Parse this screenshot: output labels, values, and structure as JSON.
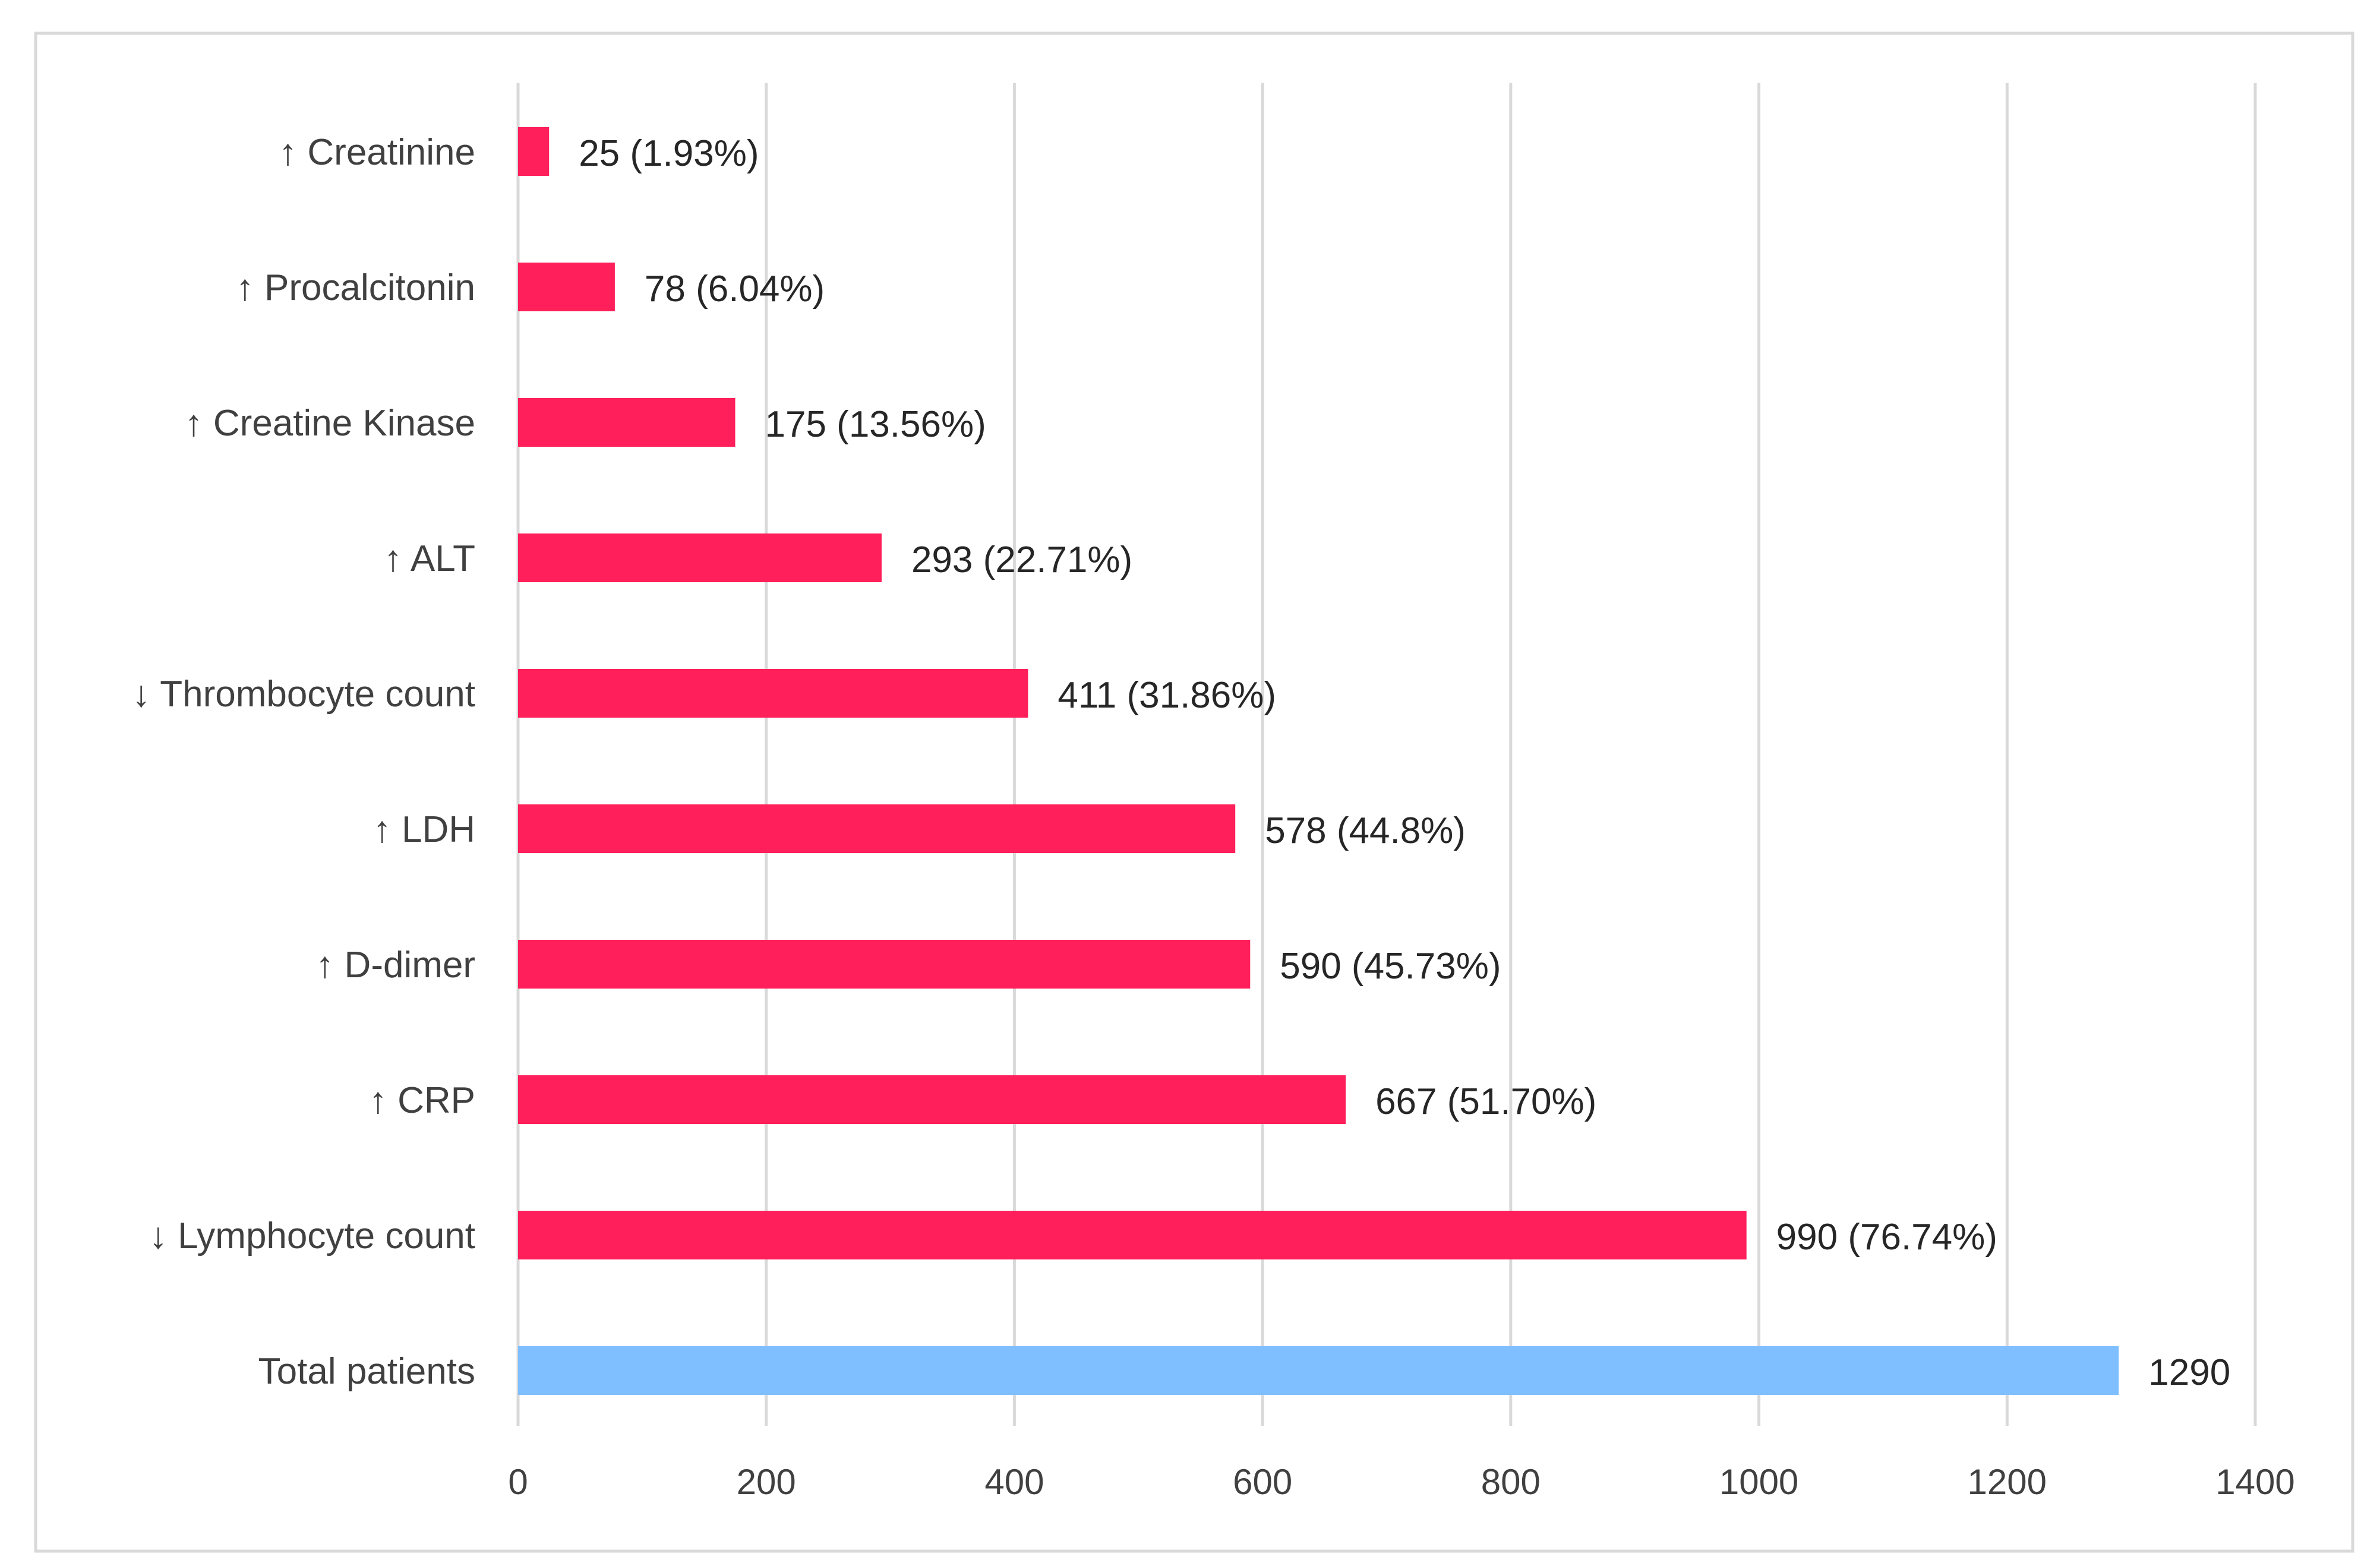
{
  "chart_data": {
    "type": "bar",
    "orientation": "horizontal",
    "title": "",
    "xlabel": "",
    "ylabel": "",
    "xlim": [
      0,
      1400
    ],
    "x_ticks": [
      "0",
      "200",
      "400",
      "600",
      "800",
      "1000",
      "1200",
      "1400"
    ],
    "grid": "vertical",
    "colors": {
      "abnormal": "#ff1f5a",
      "total": "#7fbfff",
      "grid": "#d9d9d9",
      "border": "#d9d9d9"
    },
    "bars": [
      {
        "category": "↑ Creatinine",
        "value": 25,
        "label": "25 (1.93%)",
        "kind": "abnormal"
      },
      {
        "category": "↑ Procalcitonin",
        "value": 78,
        "label": "78 (6.04%)",
        "kind": "abnormal"
      },
      {
        "category": "↑ Creatine Kinase",
        "value": 175,
        "label": "175 (13.56%)",
        "kind": "abnormal"
      },
      {
        "category": "↑ ALT",
        "value": 293,
        "label": "293 (22.71%)",
        "kind": "abnormal"
      },
      {
        "category": "↓ Thrombocyte count",
        "value": 411,
        "label": "411 (31.86%)",
        "kind": "abnormal"
      },
      {
        "category": "↑ LDH",
        "value": 578,
        "label": "578 (44.8%)",
        "kind": "abnormal"
      },
      {
        "category": "↑ D-dimer",
        "value": 590,
        "label": "590 (45.73%)",
        "kind": "abnormal"
      },
      {
        "category": "↑ CRP",
        "value": 667,
        "label": "667 (51.70%)",
        "kind": "abnormal"
      },
      {
        "category": "↓ Lymphocyte count",
        "value": 990,
        "label": "990 (76.74%)",
        "kind": "abnormal"
      },
      {
        "category": "Total patients",
        "value": 1290,
        "label": "1290",
        "kind": "total"
      }
    ]
  }
}
